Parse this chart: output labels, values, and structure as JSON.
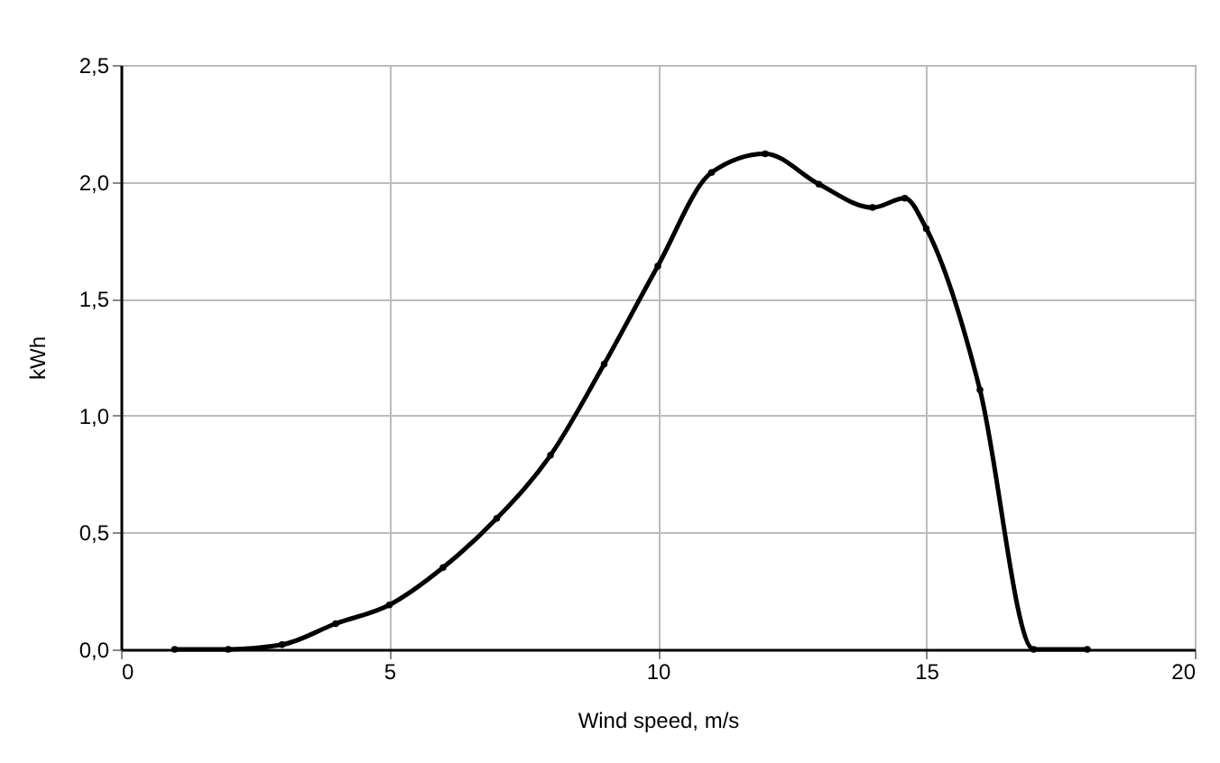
{
  "chart_data": {
    "type": "line",
    "xlabel": "Wind speed, m/s",
    "ylabel": "kWh",
    "x": [
      1,
      2,
      3,
      4,
      5,
      6,
      7,
      8,
      9,
      10,
      11,
      12,
      13,
      14,
      14.6,
      15,
      16,
      17,
      18
    ],
    "series": [
      {
        "color": "#000000",
        "values": [
          0,
          0,
          0.02,
          0.11,
          0.19,
          0.35,
          0.56,
          0.83,
          1.22,
          1.64,
          2.04,
          2.12,
          1.99,
          1.89,
          1.93,
          1.8,
          1.11,
          0,
          0
        ]
      }
    ],
    "xlim": [
      0,
      20
    ],
    "xticks": [
      0,
      5,
      10,
      15,
      20
    ],
    "ylim": [
      0,
      2.5
    ],
    "yticks": [
      {
        "value": 0,
        "label": "0,0"
      },
      {
        "value": 0.5,
        "label": "0,5"
      },
      {
        "value": 1,
        "label": "1,0"
      },
      {
        "value": 1.5,
        "label": "1,5"
      },
      {
        "value": 2,
        "label": "2,0"
      },
      {
        "value": 2.5,
        "label": "2,5"
      }
    ],
    "grid": true,
    "marker": "circle",
    "line_style": "solid"
  }
}
